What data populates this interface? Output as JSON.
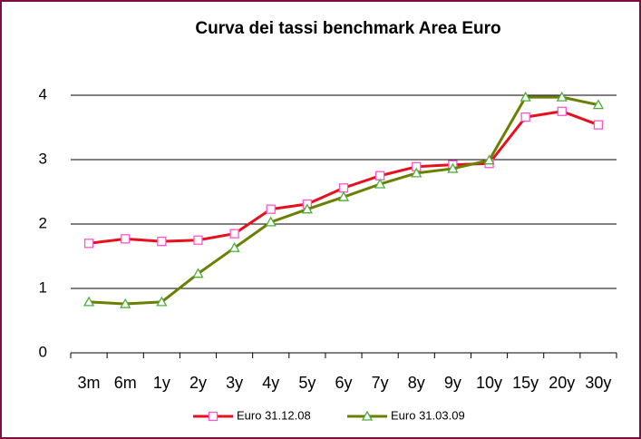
{
  "chart_data": {
    "type": "line",
    "title": "Curva dei tassi benchmark Area Euro",
    "categories": [
      "3m",
      "6m",
      "1y",
      "2y",
      "3y",
      "4y",
      "5y",
      "6y",
      "7y",
      "8y",
      "9y",
      "10y",
      "15y",
      "20y",
      "30y"
    ],
    "series": [
      {
        "name": "Euro 31.12.08",
        "color": "#e8101c",
        "marker": "square",
        "marker_color": "#ff55cc",
        "values": [
          1.7,
          1.77,
          1.73,
          1.75,
          1.85,
          2.23,
          2.31,
          2.56,
          2.75,
          2.89,
          2.92,
          2.94,
          3.66,
          3.75,
          3.54
        ]
      },
      {
        "name": "Euro 31.03.09",
        "color": "#6b7f00",
        "marker": "triangle",
        "marker_color": "#4caf3a",
        "values": [
          0.79,
          0.76,
          0.79,
          1.23,
          1.63,
          2.03,
          2.23,
          2.42,
          2.62,
          2.79,
          2.86,
          2.99,
          3.97,
          3.97,
          3.85
        ]
      }
    ],
    "ylim": [
      0,
      4.6
    ],
    "yticks": [
      0,
      1,
      2,
      3,
      4
    ],
    "grid": true,
    "legend": "bottom"
  }
}
